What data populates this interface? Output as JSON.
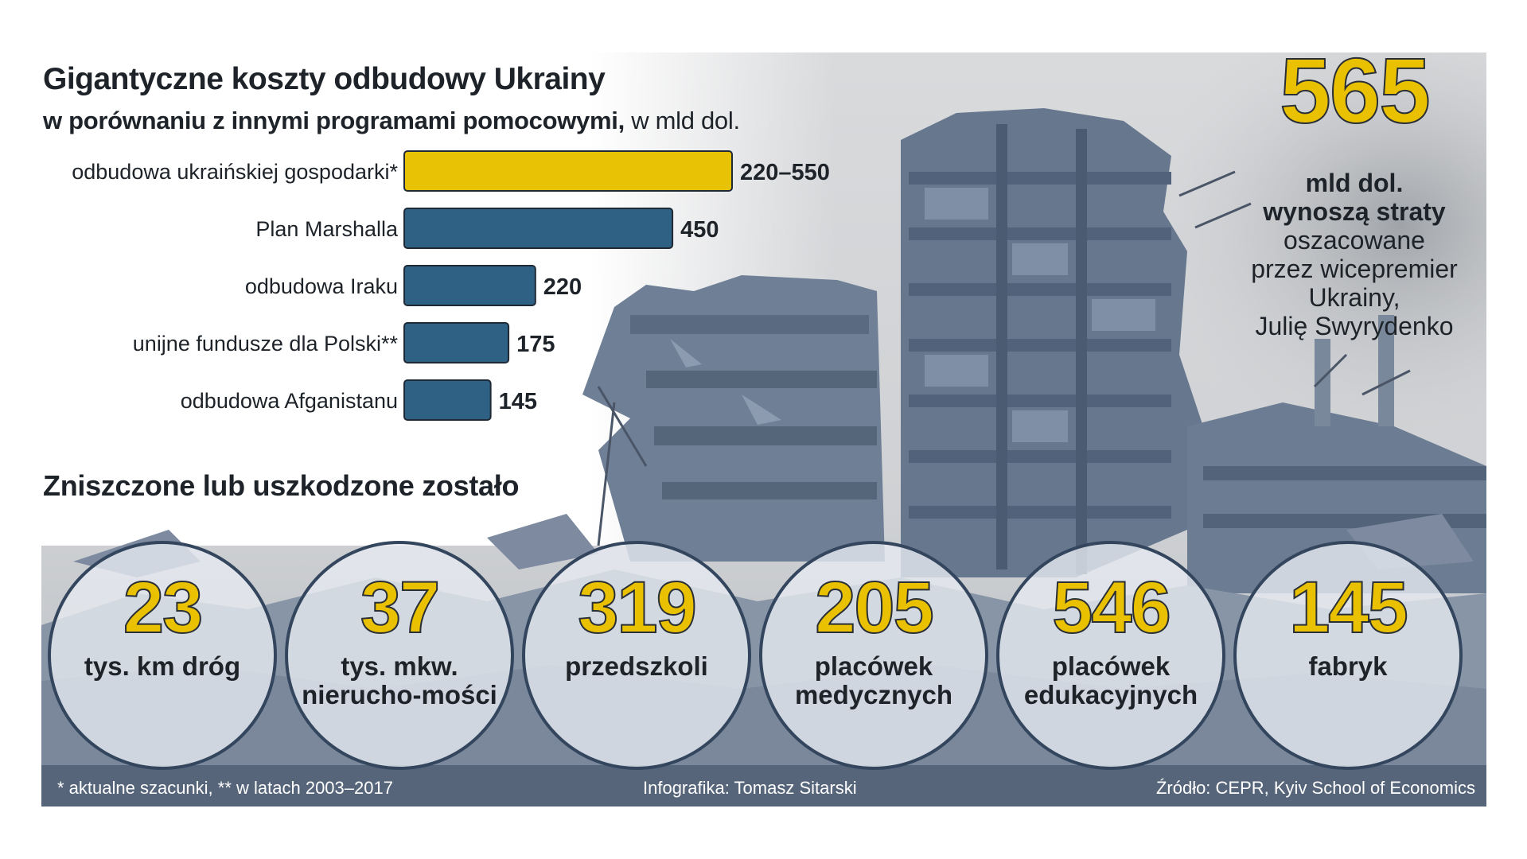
{
  "header": {
    "title": "Gigantyczne koszty odbudowy Ukrainy",
    "subtitle_bold": "w porównaniu z innymi programami pomocowymi,",
    "subtitle_unit": "w mld dol."
  },
  "chart_data": {
    "type": "bar",
    "orientation": "horizontal",
    "categories": [
      "odbudowa ukraińskiej gospodarki*",
      "Plan Marshalla",
      "odbudowa Iraku",
      "unijne fundusze dla Polski**",
      "odbudowa Afganistanu"
    ],
    "values": [
      550,
      450,
      220,
      175,
      145
    ],
    "value_labels": [
      "220–550",
      "450",
      "220",
      "175",
      "145"
    ],
    "highlight_range": [
      220,
      550
    ],
    "highlight_color": "#e8c204",
    "bar_color": "#2f6184",
    "xlim": [
      0,
      550
    ]
  },
  "summary": {
    "number": "565",
    "bold_lines": [
      "mld dol.",
      "wynoszą straty"
    ],
    "light_lines": [
      "oszacowane",
      "przez wicepremier",
      "Ukrainy,",
      "Julię Swyrydenko"
    ]
  },
  "damage": {
    "title": "Zniszczone lub uszkodzone zostało",
    "items": [
      {
        "number": "23",
        "label": "tys. km dróg"
      },
      {
        "number": "37",
        "label": "tys. mkw. nierucho-mości"
      },
      {
        "number": "319",
        "label": "przedszkoli"
      },
      {
        "number": "205",
        "label": "placówek medycznych"
      },
      {
        "number": "546",
        "label": "placówek edukacyjnych"
      },
      {
        "number": "145",
        "label": "fabryk"
      }
    ]
  },
  "footer": {
    "footnote": "* aktualne szacunki, ** w latach 2003–2017",
    "credit": "Infografika: Tomasz Sitarski",
    "source": "Źródło: CEPR, Kyiv School of Economics"
  },
  "colors": {
    "accent_yellow": "#e9c100",
    "bar_blue": "#2f6184",
    "footer_band": "#56657a",
    "text_dark": "#1d2329"
  }
}
